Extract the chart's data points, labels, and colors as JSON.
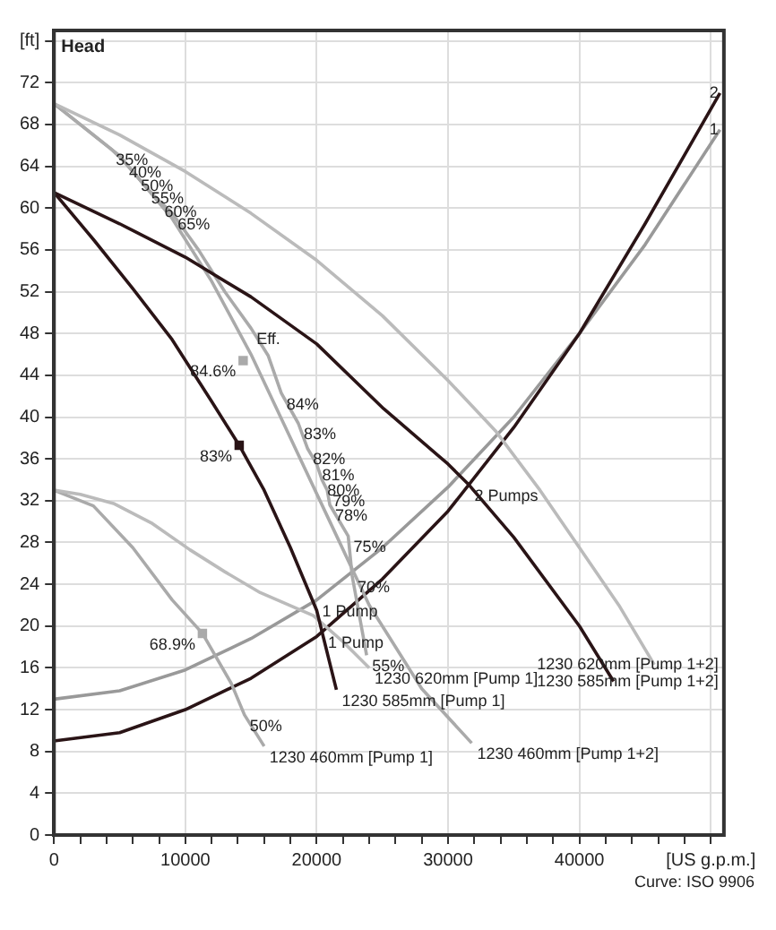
{
  "chart_data": {
    "type": "line",
    "ylabel": "Head",
    "xlim": [
      0,
      51000
    ],
    "ylim": [
      0,
      77
    ],
    "xticks": [
      0,
      {
        "value": 2000,
        "label": null
      },
      {
        "value": 4000,
        "label": null
      },
      {
        "value": 6000,
        "label": null
      },
      {
        "value": 8000,
        "label": null
      },
      10000,
      {
        "value": 12000,
        "label": null
      },
      {
        "value": 14000,
        "label": null
      },
      {
        "value": 16000,
        "label": null
      },
      {
        "value": 18000,
        "label": null
      },
      20000,
      {
        "value": 22000,
        "label": null
      },
      {
        "value": 24000,
        "label": null
      },
      {
        "value": 26000,
        "label": null
      },
      {
        "value": 28000,
        "label": null
      },
      30000,
      {
        "value": 32000,
        "label": null
      },
      {
        "value": 34000,
        "label": null
      },
      {
        "value": 36000,
        "label": null
      },
      {
        "value": 38000,
        "label": null
      },
      40000,
      {
        "value": 42000,
        "label": null
      },
      {
        "value": 44000,
        "label": null
      },
      {
        "value": 46000,
        "label": null
      },
      {
        "value": 48000,
        "label": null
      },
      {
        "value": 50000,
        "label": "[US g.p.m.]"
      }
    ],
    "yticks": [
      0,
      4,
      8,
      12,
      16,
      20,
      24,
      28,
      32,
      36,
      40,
      44,
      48,
      52,
      56,
      60,
      64,
      68,
      72,
      {
        "value": 76,
        "label": "[ft]"
      }
    ],
    "grid": true,
    "legend": false,
    "marker": "none",
    "line_style": "solid",
    "series": [
      {
        "color": "#bbbbbb",
        "x": [
          0,
          5000,
          10000,
          15000,
          20000,
          25000,
          30000,
          33600,
          37000,
          40000,
          43000,
          45700
        ],
        "values": [
          70,
          67,
          63.5,
          59.5,
          55,
          49.7,
          43.5,
          38.7,
          33,
          27.5,
          22,
          16.3
        ]
      },
      {
        "color": "#2a1416",
        "x": [
          0,
          5000,
          10000,
          15000,
          20000,
          25100,
          30000,
          31600,
          35000,
          40000,
          42600
        ],
        "values": [
          61.5,
          58.5,
          55.3,
          51.5,
          47,
          40.8,
          35.5,
          33.5,
          28.5,
          20,
          14.7
        ]
      },
      {
        "color": "#2a1416",
        "x": [
          0,
          3000,
          6000,
          9000,
          12000,
          14100,
          16000,
          18000,
          20000,
          21500
        ],
        "values": [
          61.5,
          57,
          52.3,
          47.4,
          41.5,
          37.3,
          33,
          27.5,
          21.5,
          13.9
        ]
      },
      {
        "color": "#bbbbbb",
        "x": [
          0,
          2000,
          4600,
          7500,
          10350,
          13000,
          15700,
          19750,
          22000,
          24000
        ],
        "values": [
          33,
          32.6,
          31.7,
          29.8,
          27.3,
          25.2,
          23.2,
          21,
          18.5,
          16
        ]
      },
      {
        "color": "#aaaaaa",
        "x": [
          0,
          3000,
          6000,
          9000,
          11300,
          13500,
          14500,
          16000
        ],
        "values": [
          33,
          31.5,
          27.5,
          22.5,
          19.3,
          14.5,
          11.5,
          8.5
        ]
      },
      {
        "color": "#aaaaaa",
        "x": [
          0,
          5000,
          9000,
          12000,
          15000,
          18000,
          21000,
          24000,
          28000,
          31800
        ],
        "values": [
          70,
          65,
          59,
          53,
          46,
          38,
          30,
          22,
          14,
          8.8
        ]
      },
      {
        "color": "#aaaaaa",
        "x": [
          0,
          4300,
          5300,
          6200,
          7000,
          8000,
          9000,
          11000,
          13000,
          15000,
          16300,
          17300,
          18600,
          19300,
          20000,
          20400,
          20800,
          21000,
          22400,
          22700,
          23800
        ],
        "values": [
          70,
          65.7,
          64.5,
          63.2,
          62,
          60.7,
          59.5,
          56,
          52,
          48.5,
          45.9,
          42.3,
          39.4,
          37,
          35.5,
          34,
          33,
          31.6,
          28.6,
          24.8,
          17.2
        ]
      },
      {
        "color": "#2a1416",
        "x": [
          0,
          5000,
          10000,
          15000,
          20000,
          25000,
          30000,
          35000,
          40000,
          45000,
          50700
        ],
        "values": [
          9,
          9.8,
          12,
          15,
          19,
          24.5,
          31,
          39,
          48,
          58.5,
          71
        ]
      },
      {
        "color": "#999999",
        "x": [
          0,
          5000,
          10000,
          15000,
          20000,
          25000,
          30000,
          35000,
          40000,
          45000,
          50700
        ],
        "values": [
          13,
          13.8,
          15.8,
          18.8,
          22.5,
          27.5,
          33.3,
          40,
          48,
          56.5,
          67.5
        ]
      },
      {
        "type": "scatter",
        "marker": "square",
        "color": "#2a1416",
        "x": [
          14100
        ],
        "values": [
          37.3
        ]
      },
      {
        "type": "scatter",
        "marker": "square",
        "color": "#aaaaaa",
        "x": [
          14400,
          11300
        ],
        "values": [
          45.4,
          19.3
        ]
      }
    ],
    "annotations": [
      {
        "text": "35%",
        "x": 4300,
        "y": 65.7
      },
      {
        "text": "40%",
        "x": 5300,
        "y": 64.5
      },
      {
        "text": "50%",
        "x": 6200,
        "y": 63.2
      },
      {
        "text": "55%",
        "x": 7000,
        "y": 62
      },
      {
        "text": "60%",
        "x": 8000,
        "y": 60.7
      },
      {
        "text": "65%",
        "x": 9000,
        "y": 59.5
      },
      {
        "text": "Eff.",
        "x": 15000,
        "y": 48.5
      },
      {
        "text": "84.6%",
        "x": 14400,
        "y": 45.4
      },
      {
        "text": "84%",
        "x": 17300,
        "y": 42.3
      },
      {
        "text": "83%",
        "x": 18600,
        "y": 39.4
      },
      {
        "text": "82%",
        "x": 19300,
        "y": 37
      },
      {
        "text": "81%",
        "x": 20000,
        "y": 35.5
      },
      {
        "text": "80%",
        "x": 20400,
        "y": 34
      },
      {
        "text": "79%",
        "x": 20800,
        "y": 33
      },
      {
        "text": "78%",
        "x": 21000,
        "y": 31.6
      },
      {
        "text": "75%",
        "x": 22400,
        "y": 28.6
      },
      {
        "text": "70%",
        "x": 22700,
        "y": 24.8
      },
      {
        "text": "55%",
        "x": 23800,
        "y": 17.2
      },
      {
        "text": "50%",
        "x": 14500,
        "y": 11.5
      },
      {
        "text": "68.9%",
        "x": 11300,
        "y": 19.3
      },
      {
        "text": "83%",
        "x": 14100,
        "y": 37.3
      },
      {
        "text": "1 Pump",
        "x": 20000,
        "y": 22.5
      },
      {
        "text": "1 Pump",
        "x": 20450,
        "y": 19.5
      },
      {
        "text": "2 Pumps",
        "x": 31600,
        "y": 33.5
      },
      {
        "text": "2",
        "x": 50700,
        "y": 71
      },
      {
        "text": "1",
        "x": 50700,
        "y": 67.5
      },
      {
        "text": "1230 620mm [Pump 1+2]",
        "x": 45700,
        "y": 16.3
      },
      {
        "text": "1230 585mm [Pump 1+2]",
        "x": 42600,
        "y": 14.7
      },
      {
        "text": "1230 620mm [Pump 1]",
        "x": 24000,
        "y": 16
      },
      {
        "text": "1230 585mm [Pump 1]",
        "x": 21500,
        "y": 13.9
      },
      {
        "text": "1230 460mm [Pump 1]",
        "x": 16000,
        "y": 8.5
      },
      {
        "text": "1230 460mm [Pump 1+2]",
        "x": 31800,
        "y": 8.8
      },
      "Curve: ISO 9906"
    ]
  }
}
